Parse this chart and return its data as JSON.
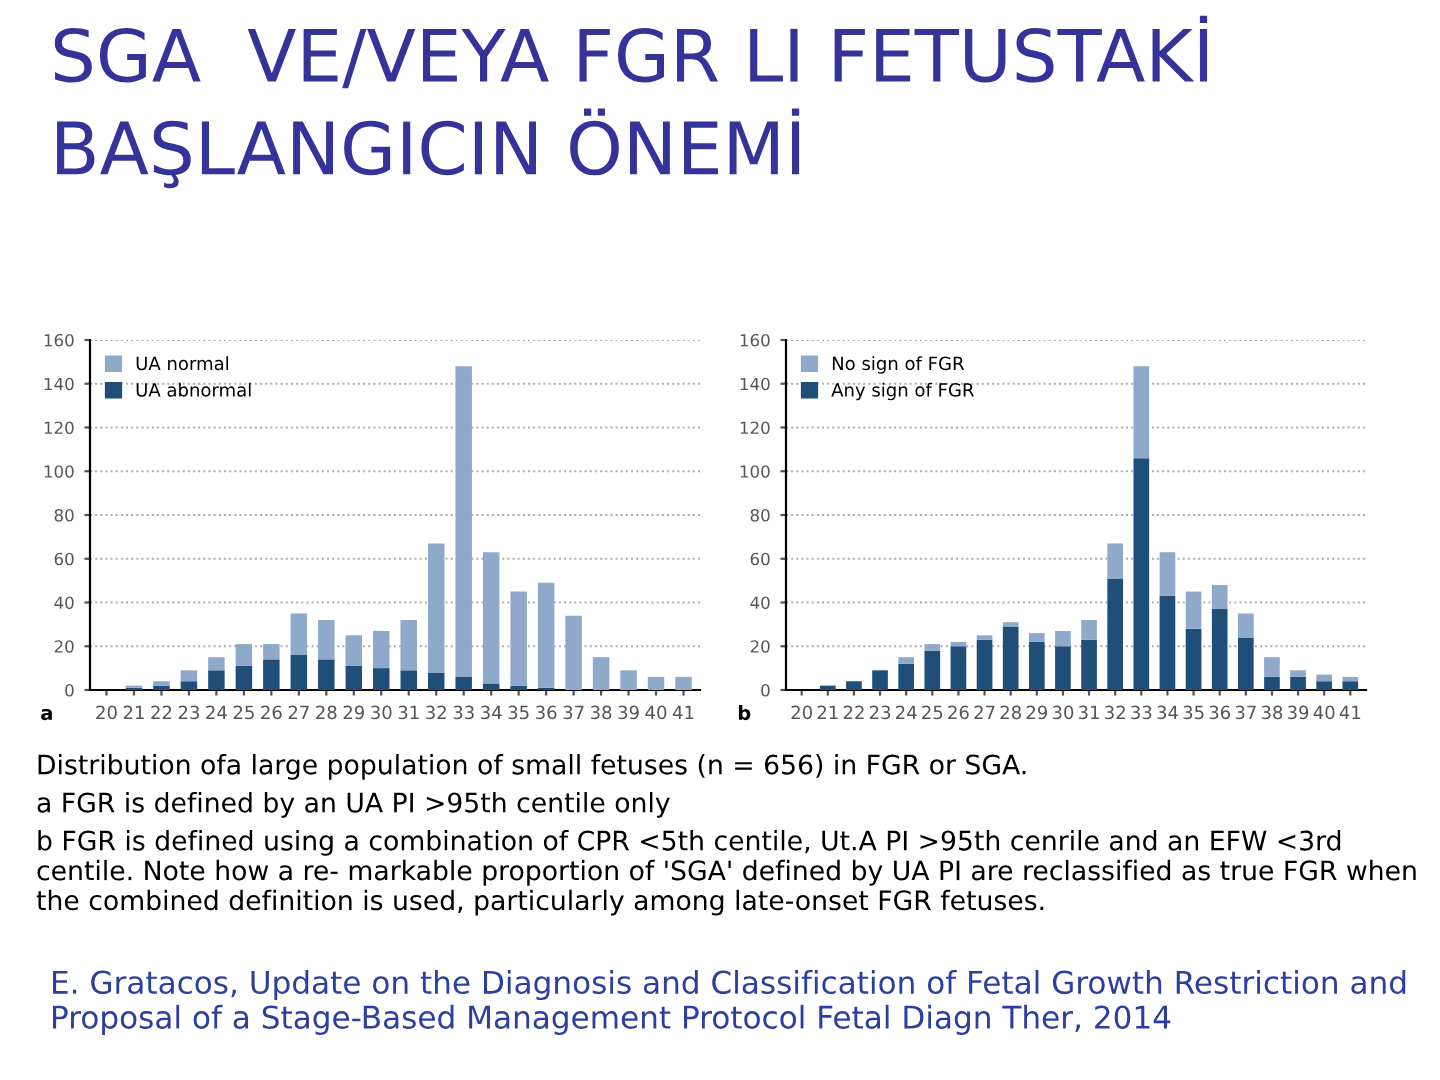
{
  "chart_data": [
    {
      "type": "bar",
      "title": "SGA  VE/VEYA FGR LI FETUSTAKİ BAŞLANGICIN ÖNEMİ",
      "stacked": true,
      "legend": "top left",
      "grid": "y",
      "categories": [
        "20",
        "21",
        "22",
        "23",
        "24",
        "25",
        "26",
        "27",
        "28",
        "29",
        "30",
        "31",
        "32",
        "33",
        "34",
        "35",
        "36",
        "37",
        "38",
        "39",
        "40",
        "41"
      ],
      "series": [
        {
          "name": "UA abnormal",
          "color": "#1f4e79",
          "values": [
            0,
            1,
            2,
            4,
            9,
            11,
            14,
            16,
            14,
            11,
            10,
            9,
            8,
            6,
            3,
            2,
            1,
            0,
            0,
            0,
            0,
            0
          ]
        },
        {
          "name": "UA normal",
          "color": "#8ea9c9",
          "values": [
            0,
            1,
            2,
            5,
            6,
            10,
            7,
            19,
            18,
            14,
            17,
            23,
            59,
            142,
            60,
            43,
            48,
            34,
            15,
            9,
            6,
            6
          ]
        }
      ],
      "ylim": [
        0,
        160
      ],
      "yticks": [
        0,
        20,
        40,
        60,
        80,
        100,
        120,
        140,
        160
      ],
      "annotations": [
        "a",
        "Distribution ofa large population of small fetuses (n = 656) in FGR or SGA.",
        "a FGR is defined by an UA PI >95th centile only",
        "b FGR is defined using a combination of CPR <5th centile, Ut.A PI >95th cenrile and an EFW <3rd centile. Note how a re- markable proportion of 'SGA' defined by UA PI are reclassified as true FGR when the combined definition is used, particularly among late-onset FGR fetuses.",
        "E. Gratacos, Update on the Diagnosis and Classification of Fetal Growth Restriction and Proposal of a Stage-Based Management Protocol Fetal Diagn Ther, 2014"
      ]
    },
    {
      "type": "bar",
      "stacked": true,
      "legend": "top left",
      "grid": "y",
      "categories": [
        "20",
        "21",
        "22",
        "23",
        "24",
        "25",
        "26",
        "27",
        "28",
        "29",
        "30",
        "31",
        "32",
        "33",
        "34",
        "35",
        "36",
        "37",
        "38",
        "39",
        "40",
        "41"
      ],
      "series": [
        {
          "name": "Any sign of FGR",
          "color": "#1f4e79",
          "values": [
            0,
            2,
            4,
            9,
            12,
            18,
            20,
            23,
            29,
            22,
            20,
            23,
            51,
            106,
            43,
            28,
            37,
            24,
            6,
            6,
            4,
            4
          ]
        },
        {
          "name": "No sign of FGR",
          "color": "#8ea9c9",
          "values": [
            0,
            0,
            0,
            0,
            3,
            3,
            2,
            2,
            2,
            4,
            7,
            9,
            16,
            42,
            20,
            17,
            11,
            11,
            9,
            3,
            3,
            2
          ]
        }
      ],
      "ylim": [
        0,
        160
      ],
      "yticks": [
        0,
        20,
        40,
        60,
        80,
        100,
        120,
        140,
        160
      ],
      "annotations": [
        "b"
      ]
    }
  ]
}
